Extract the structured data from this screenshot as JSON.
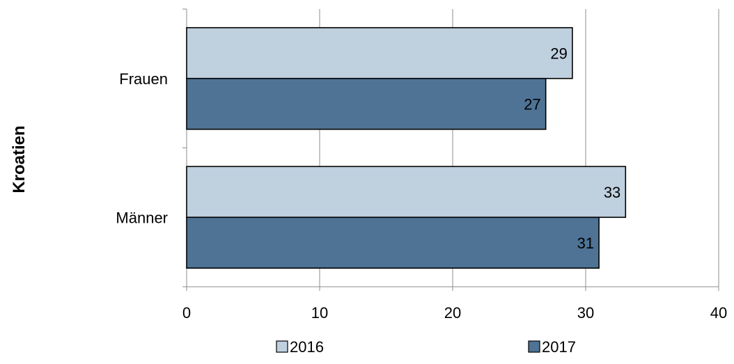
{
  "chart_data": {
    "type": "bar",
    "orientation": "horizontal",
    "group_label": "Kroatien",
    "categories": [
      "Frauen",
      "Männer"
    ],
    "series": [
      {
        "name": "2016",
        "values": [
          29,
          33
        ],
        "color": "#bfd0df"
      },
      {
        "name": "2017",
        "values": [
          27,
          31
        ],
        "color": "#4e7395"
      }
    ],
    "xlim": [
      0,
      40
    ],
    "xticks": [
      0,
      10,
      20,
      30,
      40
    ],
    "grid": true,
    "legend_position": "bottom",
    "data_labels": true
  }
}
